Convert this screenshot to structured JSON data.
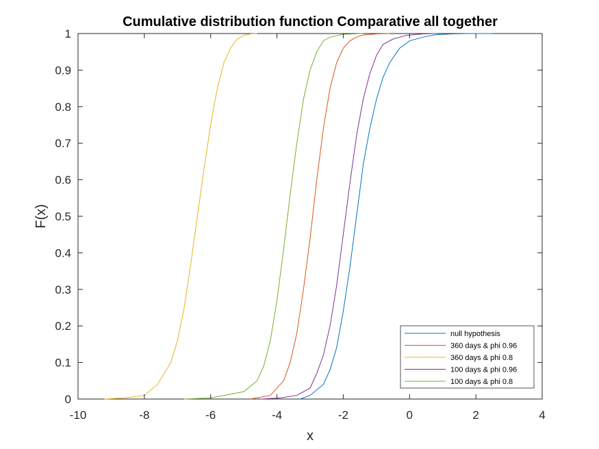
{
  "chart_data": {
    "type": "line",
    "title": "Cumulative distribution function Comparative all together",
    "xlabel": "x",
    "ylabel": "F(x)",
    "xlim": [
      -10,
      4
    ],
    "ylim": [
      0,
      1
    ],
    "xticks": [
      -10,
      -8,
      -6,
      -4,
      -2,
      0,
      2,
      4
    ],
    "xtick_labels": [
      "-10",
      "-8",
      "-6",
      "-4",
      "-2",
      "0",
      "2",
      "4"
    ],
    "yticks": [
      0,
      0.1,
      0.2,
      0.3,
      0.4,
      0.5,
      0.6,
      0.7,
      0.8,
      0.9,
      1
    ],
    "ytick_labels": [
      "0",
      "0.1",
      "0.2",
      "0.3",
      "0.4",
      "0.5",
      "0.6",
      "0.7",
      "0.8",
      "0.9",
      "1"
    ],
    "grid": false,
    "legend_position": "bottom-right",
    "series": [
      {
        "name": "null hypothesis",
        "color": "#0072BD",
        "x": [
          -3.3,
          -3.0,
          -2.6,
          -2.4,
          -2.2,
          -2.0,
          -1.8,
          -1.6,
          -1.4,
          -1.2,
          -1.0,
          -0.8,
          -0.6,
          -0.3,
          0.0,
          0.4,
          0.8,
          1.3,
          1.8,
          2.5
        ],
        "y": [
          0.0,
          0.01,
          0.04,
          0.08,
          0.14,
          0.24,
          0.36,
          0.5,
          0.64,
          0.74,
          0.82,
          0.88,
          0.92,
          0.96,
          0.98,
          0.99,
          0.997,
          0.999,
          1.0,
          1.0
        ]
      },
      {
        "name": "360 days & phi 0.96",
        "color": "#D95319",
        "x": [
          -4.8,
          -4.2,
          -3.8,
          -3.6,
          -3.4,
          -3.2,
          -3.0,
          -2.8,
          -2.6,
          -2.4,
          -2.2,
          -2.0,
          -1.8,
          -1.6,
          -1.4,
          -1.0,
          -0.6
        ],
        "y": [
          0.0,
          0.01,
          0.05,
          0.1,
          0.18,
          0.3,
          0.44,
          0.6,
          0.74,
          0.85,
          0.92,
          0.96,
          0.98,
          0.99,
          0.996,
          0.999,
          1.0
        ]
      },
      {
        "name": "360 days & phi 0.8",
        "color": "#EDB120",
        "x": [
          -9.2,
          -8.6,
          -8.0,
          -7.6,
          -7.2,
          -7.0,
          -6.8,
          -6.6,
          -6.4,
          -6.2,
          -6.0,
          -5.8,
          -5.6,
          -5.4,
          -5.2,
          -5.0,
          -4.8,
          -4.6
        ],
        "y": [
          0.0,
          0.003,
          0.01,
          0.04,
          0.1,
          0.16,
          0.25,
          0.37,
          0.5,
          0.63,
          0.75,
          0.85,
          0.92,
          0.96,
          0.985,
          0.995,
          0.999,
          1.0
        ]
      },
      {
        "name": "100 days & phi 0.96",
        "color": "#7E2F8E",
        "x": [
          -4.5,
          -3.9,
          -3.4,
          -3.0,
          -2.8,
          -2.6,
          -2.4,
          -2.2,
          -2.0,
          -1.8,
          -1.6,
          -1.4,
          -1.2,
          -1.0,
          -0.8,
          -0.5,
          -0.1,
          0.4,
          0.8
        ],
        "y": [
          0.0,
          0.003,
          0.01,
          0.03,
          0.07,
          0.12,
          0.2,
          0.31,
          0.45,
          0.59,
          0.72,
          0.82,
          0.89,
          0.94,
          0.97,
          0.985,
          0.995,
          0.999,
          1.0
        ]
      },
      {
        "name": "100 days & phi 0.8",
        "color": "#77AC30",
        "x": [
          -6.8,
          -6.0,
          -5.0,
          -4.6,
          -4.4,
          -4.2,
          -4.0,
          -3.8,
          -3.6,
          -3.4,
          -3.2,
          -3.0,
          -2.8,
          -2.6,
          -2.4,
          -2.0,
          -1.4
        ],
        "y": [
          0.0,
          0.003,
          0.02,
          0.05,
          0.09,
          0.16,
          0.27,
          0.41,
          0.56,
          0.7,
          0.82,
          0.9,
          0.95,
          0.98,
          0.99,
          0.998,
          1.0
        ]
      }
    ]
  }
}
